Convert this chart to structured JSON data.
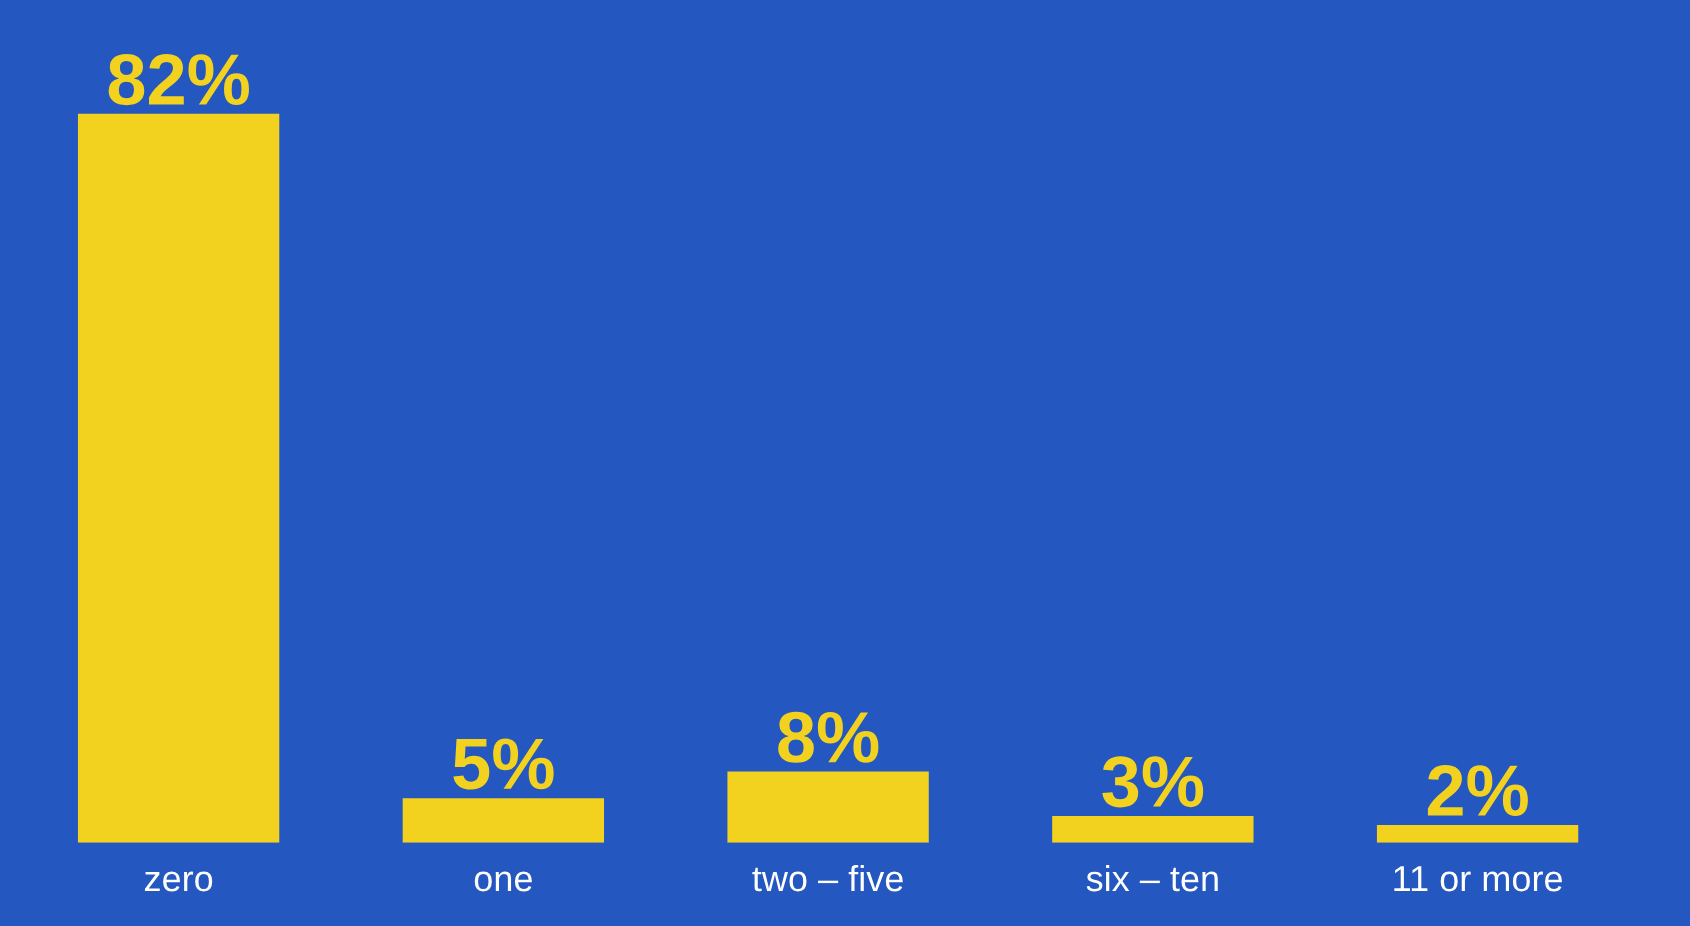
{
  "chart_data": {
    "type": "bar",
    "categories": [
      "zero",
      "one",
      "two – five",
      "six – ten",
      "11 or more"
    ],
    "values": [
      82,
      5,
      8,
      3,
      2
    ],
    "value_labels": [
      "82%",
      "5%",
      "8%",
      "3%",
      "2%"
    ],
    "color": "#f2d21e"
  }
}
